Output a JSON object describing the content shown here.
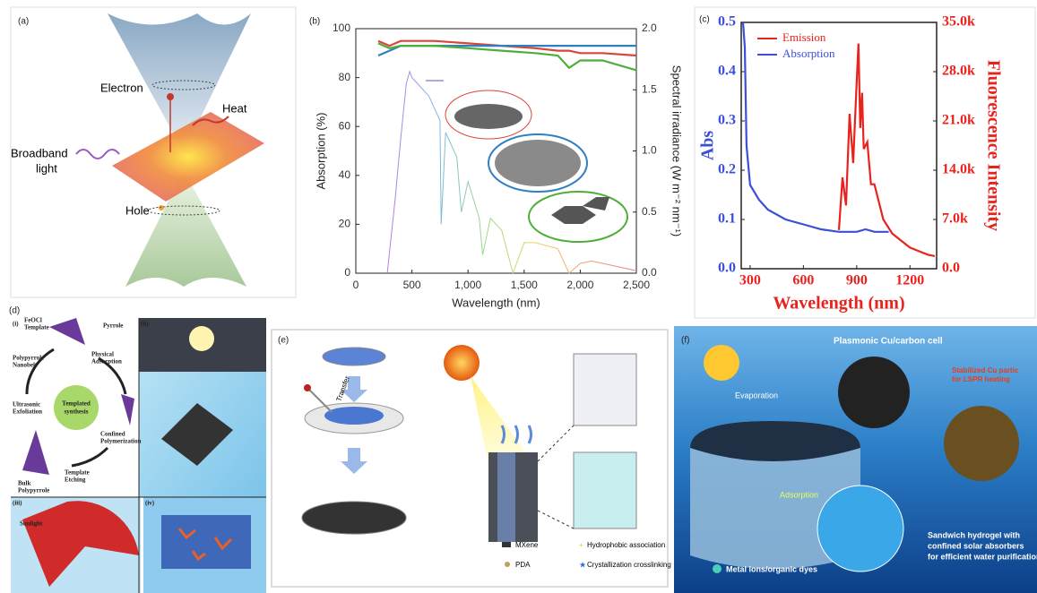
{
  "panel_a": {
    "label": "(a)",
    "electron": "Electron",
    "heat": "Heat",
    "light": [
      "Broadband",
      "light"
    ],
    "hole": "Hole"
  },
  "panel_b": {
    "type": "line",
    "label": "(b)",
    "xlabel": "Wavelength (nm)",
    "ylabel": "Absorption (%)",
    "y2label": "Spectral irradiance (W m⁻² nm⁻¹)",
    "xlim": [
      0,
      2500
    ],
    "ylim": [
      0,
      100
    ],
    "y2lim": [
      0,
      2.0
    ],
    "xticks": [
      0,
      500,
      {
        "value": 1000,
        "label": "1,000"
      },
      {
        "value": 1500,
        "label": "1,500"
      },
      {
        "value": 2000,
        "label": "2,000"
      },
      {
        "value": 2500,
        "label": "2,500"
      }
    ],
    "yticks": [
      0,
      20,
      40,
      60,
      80,
      100
    ],
    "y2ticks": [
      {
        "value": 0,
        "label": "0.0"
      },
      {
        "value": 0.5,
        "label": "0.5"
      },
      {
        "value": 1.0,
        "label": "1.0"
      },
      {
        "value": 1.5,
        "label": "1.5"
      },
      {
        "value": 2.0,
        "label": "2.0"
      }
    ],
    "series": [
      {
        "color": "#d9453a",
        "x": [
          200,
          300,
          400,
          500,
          700,
          1000,
          1300,
          1600,
          1800,
          1900,
          2000,
          2200,
          2500
        ],
        "values": [
          95,
          93,
          95,
          95,
          95,
          94,
          93,
          92,
          91,
          91,
          90,
          90,
          89
        ]
      },
      {
        "color": "#2f7fc1",
        "x": [
          200,
          300,
          400,
          500,
          700,
          1000,
          1300,
          1600,
          1800,
          1900,
          2000,
          2200,
          2500
        ],
        "values": [
          89,
          91,
          93,
          93,
          93,
          93,
          93,
          93,
          93,
          93,
          93,
          93,
          93
        ]
      },
      {
        "color": "#4fae3a",
        "x": [
          200,
          300,
          400,
          500,
          700,
          1000,
          1300,
          1600,
          1800,
          1900,
          2000,
          2200,
          2500
        ],
        "values": [
          94,
          92,
          93,
          93,
          93,
          92,
          91,
          90,
          89,
          84,
          87,
          87,
          83
        ]
      },
      {
        "axis": "y2",
        "colors": [
          "#b57edc",
          "#7fb6e6",
          "#9bdc8a",
          "#f0d060",
          "#f0a070",
          "#e88080"
        ],
        "x": [
          280,
          350,
          400,
          450,
          480,
          500,
          550,
          650,
          750,
          760,
          800,
          900,
          940,
          1000,
          1100,
          1130,
          1200,
          1300,
          1400,
          1500,
          1600,
          1800,
          1900,
          2000,
          2100,
          2300,
          2500
        ],
        "values": [
          0.0,
          0.6,
          1.1,
          1.55,
          1.65,
          1.6,
          1.55,
          1.45,
          1.25,
          0.4,
          1.15,
          0.95,
          0.5,
          0.75,
          0.45,
          0.15,
          0.45,
          0.35,
          0.0,
          0.25,
          0.25,
          0.2,
          0.0,
          0.08,
          0.1,
          0.06,
          0.02
        ]
      }
    ]
  },
  "panel_c": {
    "type": "line",
    "label": "(c)",
    "xlabel": "Wavelength (nm)",
    "ylabel": "Abs",
    "y2label": "Fluorescence Intensity",
    "xlim": [
      250,
      1350
    ],
    "ylim": [
      0,
      0.5
    ],
    "y2lim": [
      0,
      35000
    ],
    "legend": "upper left",
    "xticks": [
      300,
      600,
      900,
      1200
    ],
    "yticks": [
      {
        "value": 0,
        "label": "0.0"
      },
      {
        "value": 0.1,
        "label": "0.1"
      },
      {
        "value": 0.2,
        "label": "0.2"
      },
      {
        "value": 0.3,
        "label": "0.3"
      },
      {
        "value": 0.4,
        "label": "0.4"
      },
      {
        "value": 0.5,
        "label": "0.5"
      }
    ],
    "y2ticks": [
      {
        "value": 0,
        "label": "0.0"
      },
      {
        "value": 7000,
        "label": "7.0k"
      },
      {
        "value": 14000,
        "label": "14.0k"
      },
      {
        "value": 21000,
        "label": "21.0k"
      },
      {
        "value": 28000,
        "label": "28.0k"
      },
      {
        "value": 35000,
        "label": "35.0k"
      }
    ],
    "series": [
      {
        "name": "Emission",
        "color": "#e8231e",
        "axis": "y2",
        "x": [
          800,
          820,
          840,
          860,
          880,
          900,
          910,
          920,
          930,
          940,
          960,
          980,
          1000,
          1050,
          1100,
          1150,
          1200,
          1250,
          1300,
          1340
        ],
        "values": [
          5500,
          13000,
          9000,
          22000,
          15000,
          26500,
          32000,
          20000,
          25000,
          17000,
          18000,
          12000,
          12000,
          7000,
          5000,
          4000,
          3000,
          2500,
          2000,
          1800
        ]
      },
      {
        "name": "Absorption",
        "color": "#3b4fd8",
        "x": [
          260,
          270,
          280,
          300,
          350,
          400,
          500,
          600,
          700,
          800,
          900,
          950,
          1000,
          1080
        ],
        "values": [
          0.5,
          0.45,
          0.25,
          0.17,
          0.14,
          0.12,
          0.1,
          0.09,
          0.08,
          0.075,
          0.075,
          0.08,
          0.075,
          0.075
        ]
      }
    ]
  },
  "panel_d": {
    "label": "(d)",
    "sub": [
      "(i)",
      "(ii)",
      "(iii)",
      "(iv)"
    ],
    "template": [
      "FeOCl",
      "Template"
    ],
    "pyrrole": "Pyrrole",
    "adsorption": [
      "Physical",
      "Adsorption"
    ],
    "center": [
      "Templated",
      "synthesis"
    ],
    "confined": [
      "Confined",
      "Polymerization"
    ],
    "etching": [
      "Template",
      "Etching"
    ],
    "bulk": [
      "Bulk",
      "Polypyrrole"
    ],
    "exfoliation": [
      "Ultrasonic",
      "Exfoliation"
    ],
    "nanobelt": [
      "Polypyrrole",
      "Nanobelt"
    ],
    "sunlight": "Sunlight"
  },
  "panel_e": {
    "label": "(e)",
    "transfer": "Transfer",
    "mxene": "MXene",
    "pda": "PDA",
    "hydrophobic": "Hydrophobic association",
    "crystal": "Crystallization crosslinking"
  },
  "panel_f": {
    "label": "(f)",
    "cell": "Plasmonic Cu/carbon cell",
    "particles": [
      "Stabilized Cu partic",
      "for LSPR heating"
    ],
    "evaporation": "Evaporation",
    "adsorption": "Adsorption",
    "hydrogel": [
      "Sandwich hydrogel with",
      "confined solar absorbers",
      "for efficient water purification"
    ],
    "ions": "Metal ions/organic dyes"
  }
}
